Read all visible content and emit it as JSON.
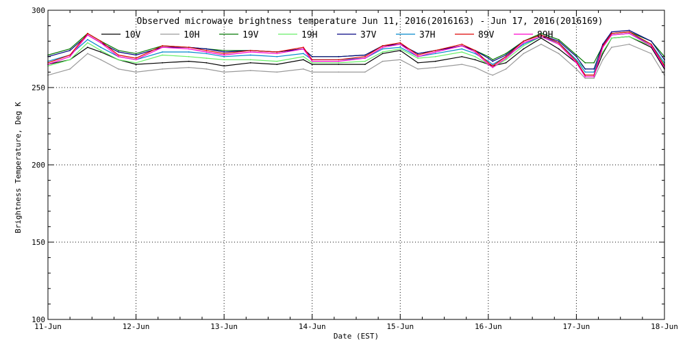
{
  "chart_data": {
    "type": "line",
    "title": "Observed microwave brightness temperature Jun 11, 2016(2016163) - Jun 17, 2016(2016169)",
    "xlabel": "Date (EST)",
    "ylabel": "Brightness Temperature, Deg K",
    "xlim": [
      0,
      7
    ],
    "ylim": [
      100,
      300
    ],
    "x_tick_values": [
      0,
      1,
      2,
      3,
      4,
      5,
      6,
      7
    ],
    "x_tick_labels": [
      "11-Jun",
      "12-Jun",
      "13-Jun",
      "14-Jun",
      "15-Jun",
      "16-Jun",
      "17-Jun",
      "18-Jun"
    ],
    "y_ticks": [
      100,
      150,
      200,
      250,
      300
    ],
    "grid": true,
    "legend_position": "top",
    "x": [
      0,
      0.25,
      0.45,
      0.6,
      0.8,
      1.0,
      1.3,
      1.6,
      1.8,
      2.0,
      2.3,
      2.6,
      2.9,
      3.0,
      3.3,
      3.6,
      3.8,
      4.0,
      4.2,
      4.4,
      4.7,
      4.85,
      5.0,
      5.05,
      5.2,
      5.4,
      5.6,
      5.8,
      6.0,
      6.1,
      6.2,
      6.3,
      6.4,
      6.6,
      6.85,
      7.0
    ],
    "series": [
      {
        "name": "10V",
        "color": "#000000",
        "values": [
          265,
          268,
          276,
          273,
          268,
          265,
          266,
          267,
          266,
          264,
          266,
          265,
          268,
          265,
          265,
          265,
          272,
          274,
          266,
          267,
          270,
          268,
          265,
          264,
          266,
          275,
          282,
          275,
          266,
          258,
          258,
          272,
          282,
          283,
          276,
          262
        ]
      },
      {
        "name": "10H",
        "color": "#999999",
        "values": [
          258,
          262,
          272,
          268,
          262,
          260,
          262,
          263,
          262,
          260,
          261,
          260,
          262,
          260,
          260,
          260,
          267,
          268,
          262,
          263,
          265,
          263,
          259,
          258,
          262,
          272,
          278,
          272,
          262,
          256,
          256,
          268,
          276,
          278,
          272,
          258
        ]
      },
      {
        "name": "19V",
        "color": "#007700",
        "values": [
          271,
          275,
          285,
          280,
          274,
          272,
          277,
          276,
          275,
          274,
          274,
          273,
          275,
          270,
          270,
          271,
          277,
          278,
          272,
          274,
          277,
          274,
          270,
          268,
          272,
          280,
          285,
          281,
          271,
          266,
          266,
          277,
          285,
          286,
          280,
          270
        ]
      },
      {
        "name": "19H",
        "color": "#66ee66",
        "values": [
          264,
          268,
          279,
          274,
          268,
          266,
          271,
          270,
          269,
          268,
          268,
          267,
          270,
          266,
          266,
          267,
          273,
          275,
          269,
          270,
          273,
          270,
          265,
          263,
          268,
          277,
          283,
          278,
          268,
          262,
          262,
          273,
          282,
          283,
          277,
          265
        ]
      },
      {
        "name": "37V",
        "color": "#000080",
        "values": [
          270,
          274,
          284,
          279,
          273,
          271,
          276,
          276,
          275,
          273,
          274,
          273,
          275,
          270,
          270,
          271,
          277,
          278,
          272,
          274,
          277,
          274,
          269,
          267,
          271,
          280,
          284,
          280,
          270,
          262,
          262,
          278,
          286,
          287,
          280,
          268
        ]
      },
      {
        "name": "37H",
        "color": "#0088cc",
        "values": [
          267,
          271,
          281,
          276,
          270,
          268,
          273,
          273,
          272,
          270,
          271,
          270,
          272,
          268,
          268,
          269,
          275,
          276,
          270,
          272,
          275,
          272,
          267,
          265,
          270,
          278,
          283,
          279,
          268,
          260,
          260,
          276,
          284,
          285,
          278,
          266
        ]
      },
      {
        "name": "89V",
        "color": "#dd0000",
        "values": [
          266,
          271,
          285,
          280,
          271,
          269,
          277,
          276,
          274,
          272,
          274,
          273,
          276,
          268,
          268,
          270,
          277,
          279,
          271,
          274,
          278,
          274,
          266,
          264,
          270,
          280,
          284,
          279,
          267,
          258,
          258,
          277,
          285,
          286,
          278,
          264
        ]
      },
      {
        "name": "89H",
        "color": "#ff00cc",
        "values": [
          265,
          270,
          284,
          279,
          270,
          268,
          276,
          275,
          273,
          271,
          273,
          272,
          275,
          267,
          267,
          269,
          276,
          278,
          270,
          273,
          277,
          273,
          265,
          263,
          269,
          279,
          283,
          278,
          266,
          257,
          257,
          276,
          284,
          285,
          277,
          263
        ]
      }
    ]
  }
}
